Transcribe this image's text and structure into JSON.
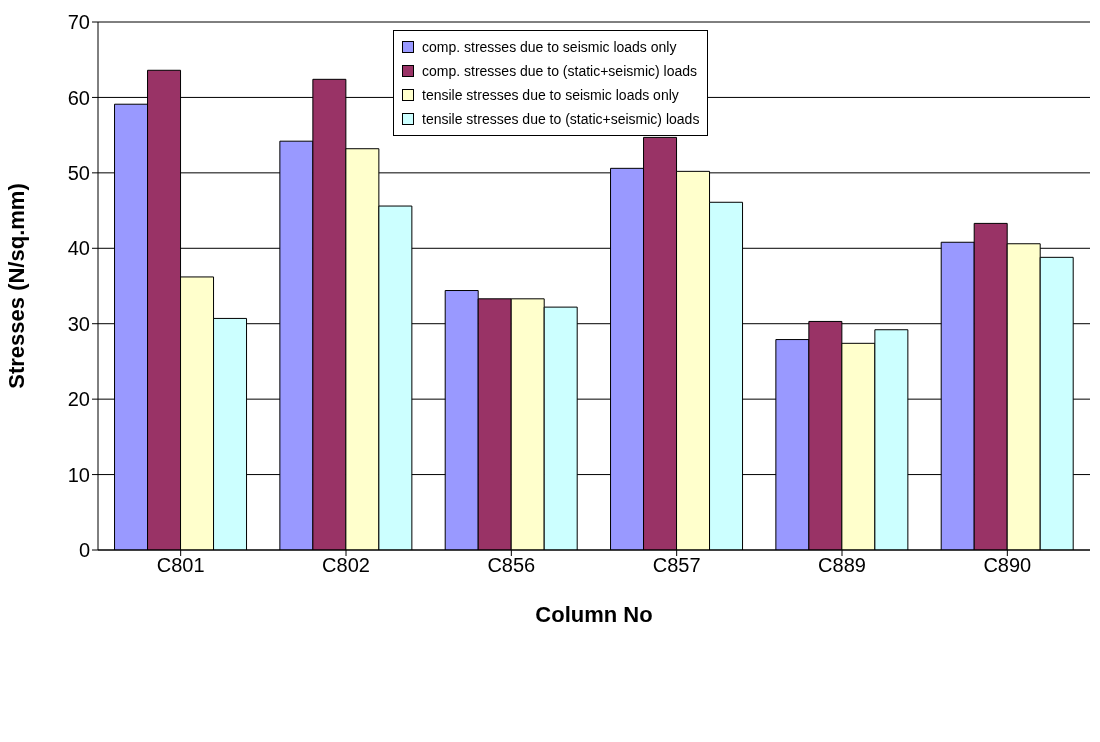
{
  "chart_data": {
    "type": "bar",
    "xlabel": "Column No",
    "ylabel": "Stresses (N/sq.mm)",
    "categories": [
      "C801",
      "C802",
      "C856",
      "C857",
      "C889",
      "C890"
    ],
    "series": [
      {
        "name": "comp. stresses due to seismic loads only",
        "color": "#9999ff",
        "values": [
          59.1,
          54.2,
          34.4,
          50.6,
          27.9,
          40.8
        ]
      },
      {
        "name": "comp. stresses due to (static+seismic) loads",
        "color": "#993366",
        "values": [
          63.6,
          62.4,
          33.3,
          54.7,
          30.3,
          43.3
        ]
      },
      {
        "name": "tensile stresses due to seismic loads only",
        "color": "#ffffcc",
        "values": [
          36.2,
          53.2,
          33.3,
          50.2,
          27.4,
          40.6
        ]
      },
      {
        "name": "tensile stresses due to (static+seismic) loads",
        "color": "#ccffff",
        "values": [
          30.7,
          45.6,
          32.2,
          46.1,
          29.2,
          38.8
        ]
      }
    ],
    "ylim": [
      0,
      70
    ],
    "yticks": [
      0,
      10,
      20,
      30,
      40,
      50,
      60,
      70
    ],
    "grid": "y",
    "legend": "top"
  }
}
